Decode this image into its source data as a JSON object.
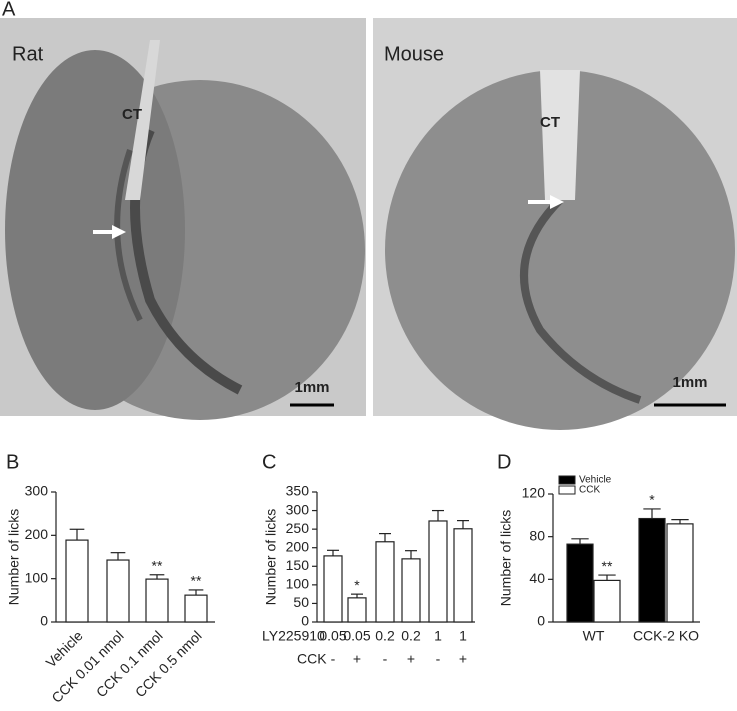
{
  "figure": {
    "panel_labels": [
      "A",
      "B",
      "C",
      "D"
    ],
    "images": [
      {
        "label": "Rat",
        "annotation": "CT",
        "scale": "1mm"
      },
      {
        "label": "Mouse",
        "annotation": "CT",
        "scale": "1mm"
      }
    ]
  },
  "chart_data": [
    {
      "type": "bar",
      "y_label": "Number of licks",
      "categories": [
        "Vehicle",
        "CCK 0.01 nmol",
        "CCK 0.1 nmol",
        "CCK 0.5 nmol"
      ],
      "values": [
        189,
        143,
        99,
        62
      ],
      "errors": [
        25,
        17,
        10,
        12
      ],
      "significance": [
        null,
        null,
        "**",
        "**"
      ],
      "color": "#ffffff",
      "ylim": [
        0,
        300
      ],
      "yticks": [
        0,
        100,
        200,
        300
      ]
    },
    {
      "type": "bar",
      "y_label": "Number of licks",
      "category_rows": [
        {
          "name": "LY225910",
          "labels": [
            "0.05",
            "0.05",
            "0.2",
            "0.2",
            "1",
            "1"
          ]
        },
        {
          "name": "CCK",
          "labels": [
            "-",
            "+",
            "-",
            "+",
            "-",
            "+"
          ]
        }
      ],
      "values": [
        178,
        65,
        216,
        170,
        272,
        251
      ],
      "errors": [
        15,
        10,
        22,
        22,
        28,
        22
      ],
      "significance": [
        null,
        "*",
        null,
        null,
        null,
        null
      ],
      "color": "#ffffff",
      "ylim": [
        0,
        350
      ],
      "yticks": [
        0,
        50,
        100,
        150,
        200,
        250,
        300,
        350
      ]
    },
    {
      "type": "grouped_bar",
      "y_label": "Number of licks",
      "categories": [
        "WT",
        "CCK-2 KO"
      ],
      "series": [
        {
          "name": "Vehicle",
          "color": "#000000",
          "values": [
            73,
            97
          ],
          "errors": [
            5,
            9
          ],
          "significance": [
            null,
            "*"
          ]
        },
        {
          "name": "CCK",
          "color": "#ffffff",
          "values": [
            39,
            92
          ],
          "errors": [
            5,
            4
          ],
          "significance": [
            "**",
            null
          ]
        }
      ],
      "legend": "top-left",
      "ylim": [
        0,
        120
      ],
      "yticks": [
        0,
        40,
        80,
        120
      ]
    }
  ]
}
